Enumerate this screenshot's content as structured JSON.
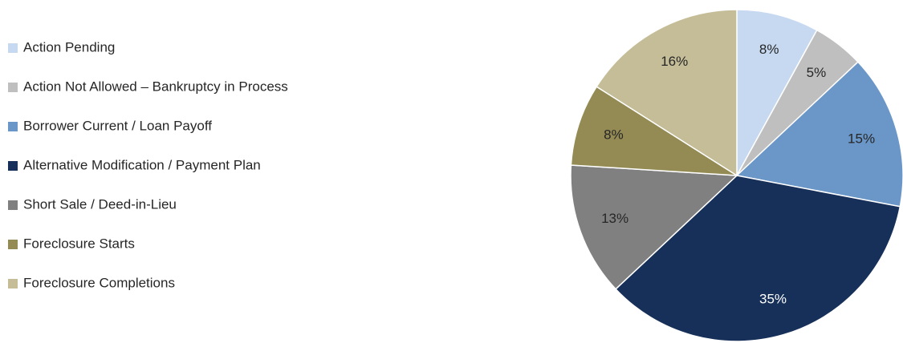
{
  "chart_data": {
    "type": "pie",
    "categories": [
      "Action Pending",
      "Action Not Allowed – Bankruptcy in Process",
      "Borrower Current / Loan Payoff",
      "Alternative Modification / Payment Plan",
      "Short Sale / Deed-in-Lieu",
      "Foreclosure Starts",
      "Foreclosure Completions"
    ],
    "values": [
      8,
      5,
      15,
      35,
      13,
      8,
      16
    ],
    "value_labels": [
      "8%",
      "5%",
      "15%",
      "35%",
      "13%",
      "8%",
      "16%"
    ],
    "colors": [
      "#c6d9f1",
      "#bfbfbf",
      "#6a96c8",
      "#17305a",
      "#808080",
      "#948a54",
      "#c4bd97"
    ],
    "legend": "left"
  }
}
